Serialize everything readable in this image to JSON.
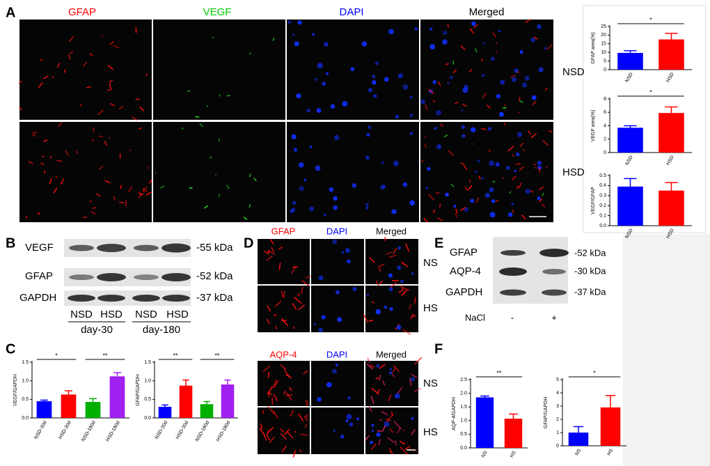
{
  "panel_labels": [
    "A",
    "B",
    "C",
    "D",
    "E",
    "F"
  ],
  "panel_a": {
    "headers": [
      "GFAP",
      "VEGF",
      "DAPI",
      "Merged"
    ],
    "rows": [
      "NSD",
      "HSD"
    ]
  },
  "panel_b": {
    "bands": [
      "VEGF",
      "GFAP",
      "GAPDH"
    ],
    "sizes": [
      "-55 kDa",
      "-52 kDa",
      "-37 kDa"
    ],
    "lanes": [
      "NSD",
      "HSD",
      "NSD",
      "HSD"
    ],
    "groups": [
      "day-30",
      "day-180"
    ]
  },
  "panel_d": {
    "top_headers": [
      "GFAP",
      "DAPI",
      "Merged"
    ],
    "bottom_headers": [
      "AQP-4",
      "DAPI",
      "Merged"
    ],
    "rows": [
      "NS",
      "HS"
    ]
  },
  "panel_e": {
    "bands": [
      "GFAP",
      "AQP-4",
      "GAPDH"
    ],
    "sizes": [
      "-52 kDa",
      "-30 kDa",
      "-37 kDa"
    ],
    "treatment": "NaCl",
    "lanes": [
      "-",
      "+"
    ]
  },
  "chart_data": [
    {
      "type": "bar",
      "ylabel": "GFAP area(%)",
      "categories": [
        "NSD",
        "HSD"
      ],
      "values": [
        9.7,
        17.5
      ],
      "errors": [
        1.3,
        3.5
      ],
      "colors": [
        "#0000ff",
        "#ff0000"
      ],
      "ylim": [
        0,
        25
      ],
      "yticks": [
        0,
        5,
        10,
        15,
        20,
        25
      ],
      "significance": [
        {
          "label": "*",
          "between": [
            0,
            1
          ]
        }
      ]
    },
    {
      "type": "bar",
      "ylabel": "VEGF area(%)",
      "categories": [
        "NSD",
        "HSD"
      ],
      "values": [
        3.7,
        5.9
      ],
      "errors": [
        0.3,
        0.9
      ],
      "colors": [
        "#0000ff",
        "#ff0000"
      ],
      "ylim": [
        0,
        8
      ],
      "yticks": [
        0,
        2,
        4,
        6,
        8
      ],
      "significance": [
        {
          "label": "*",
          "between": [
            0,
            1
          ]
        }
      ]
    },
    {
      "type": "bar",
      "ylabel": "VEGF/GFAP",
      "categories": [
        "NSD",
        "HSD"
      ],
      "values": [
        0.39,
        0.35
      ],
      "errors": [
        0.08,
        0.08
      ],
      "colors": [
        "#0000ff",
        "#ff0000"
      ],
      "ylim": [
        0,
        0.5
      ],
      "yticks": [
        {
          "value": 0,
          "label": "0.0"
        },
        0.1,
        0.2,
        0.3,
        0.4,
        0.5
      ],
      "significance": []
    },
    {
      "type": "bar",
      "ylabel": "VEGF/GAPDH",
      "categories": [
        "NSD-30d",
        "HSD-30d",
        "NSD-180d",
        "HSD-180d"
      ],
      "values": [
        0.45,
        0.63,
        0.43,
        1.12
      ],
      "errors": [
        0.03,
        0.1,
        0.09,
        0.1
      ],
      "colors": [
        "#0000ff",
        "#ff0000",
        "#00b000",
        "#a020f0"
      ],
      "ylim": [
        0,
        1.5
      ],
      "yticks": [
        {
          "value": 0,
          "label": "0.0"
        },
        0.5,
        {
          "value": 1,
          "label": "1.0"
        },
        1.5
      ],
      "significance": [
        {
          "label": "*",
          "between": [
            0,
            1
          ]
        },
        {
          "label": "**",
          "between": [
            2,
            3
          ]
        }
      ]
    },
    {
      "type": "bar",
      "ylabel": "GFAP/GAPDH",
      "categories": [
        "NSD-30d",
        "HSD-30d",
        "NSD-180d",
        "HSD-180d"
      ],
      "values": [
        0.3,
        0.87,
        0.37,
        0.9
      ],
      "errors": [
        0.05,
        0.15,
        0.07,
        0.12
      ],
      "colors": [
        "#0000ff",
        "#ff0000",
        "#00b000",
        "#a020f0"
      ],
      "ylim": [
        0,
        1.5
      ],
      "yticks": [
        {
          "value": 0,
          "label": "0.0"
        },
        0.5,
        {
          "value": 1,
          "label": "1.0"
        },
        1.5
      ],
      "significance": [
        {
          "label": "**",
          "between": [
            0,
            1
          ]
        },
        {
          "label": "**",
          "between": [
            2,
            3
          ]
        }
      ]
    },
    {
      "type": "bar",
      "ylabel": "AQP-4/GAPDH",
      "categories": [
        "NS",
        "HS"
      ],
      "values": [
        1.85,
        1.07
      ],
      "errors": [
        0.05,
        0.17
      ],
      "colors": [
        "#0000ff",
        "#ff0000"
      ],
      "ylim": [
        0,
        2.5
      ],
      "yticks": [
        {
          "value": 0,
          "label": "0.0"
        },
        0.5,
        {
          "value": 1,
          "label": "1.0"
        },
        1.5,
        {
          "value": 2,
          "label": "2.0"
        },
        2.5
      ],
      "significance": [
        {
          "label": "**",
          "between": [
            0,
            1
          ]
        }
      ]
    },
    {
      "type": "bar",
      "ylabel": "GFAP/GAPDH",
      "categories": [
        "NS",
        "HS"
      ],
      "values": [
        1.0,
        2.9
      ],
      "errors": [
        0.45,
        0.9
      ],
      "colors": [
        "#0000ff",
        "#ff0000"
      ],
      "ylim": [
        0,
        5
      ],
      "yticks": [
        0,
        1,
        2,
        3,
        4,
        5
      ],
      "significance": [
        {
          "label": "*",
          "between": [
            0,
            1
          ]
        }
      ]
    }
  ]
}
